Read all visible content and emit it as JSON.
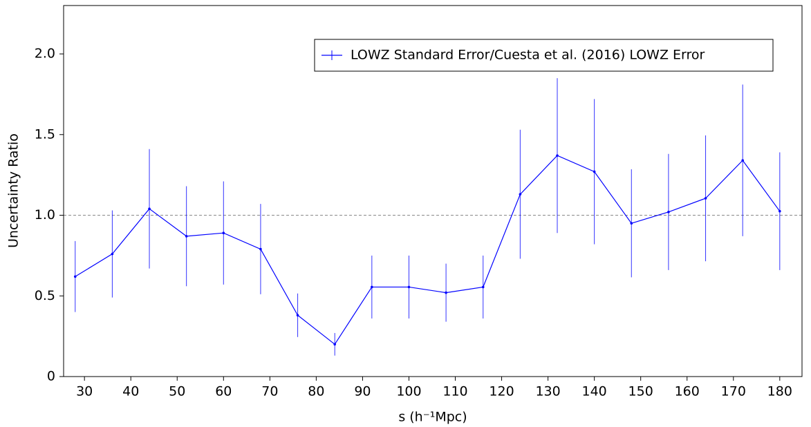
{
  "chart_data": {
    "type": "errorbar-line",
    "xlabel": "s (h⁻¹Mpc)",
    "ylabel": "Uncertainty Ratio",
    "x": [
      28,
      36,
      44,
      52,
      60,
      68,
      76,
      84,
      92,
      100,
      108,
      116,
      124,
      132,
      140,
      148,
      156,
      164,
      172,
      180
    ],
    "series": [
      {
        "name": "LOWZ Standard Error/Cuesta et al. (2016) LOWZ Error",
        "color": "#0000ff",
        "values": [
          0.62,
          0.76,
          1.04,
          0.87,
          0.89,
          0.79,
          0.38,
          0.2,
          0.555,
          0.555,
          0.52,
          0.555,
          1.13,
          1.37,
          1.27,
          0.95,
          1.02,
          1.105,
          1.34,
          1.025
        ],
        "errors": [
          0.22,
          0.27,
          0.37,
          0.31,
          0.32,
          0.28,
          0.135,
          0.07,
          0.195,
          0.195,
          0.18,
          0.195,
          0.4,
          0.48,
          0.45,
          0.335,
          0.36,
          0.39,
          0.47,
          0.365
        ]
      }
    ],
    "xlim": [
      25.5,
      184.8
    ],
    "xticks": [
      30,
      40,
      50,
      60,
      70,
      80,
      90,
      100,
      110,
      120,
      130,
      140,
      150,
      160,
      170,
      180
    ],
    "ylim": [
      0,
      2.3
    ],
    "yticks": [
      0,
      0.5,
      {
        "value": 1.0,
        "label": "1.0"
      },
      1.5,
      {
        "value": 2.0,
        "label": "2.0"
      }
    ],
    "hline": 1.0,
    "legend": "upper right"
  }
}
